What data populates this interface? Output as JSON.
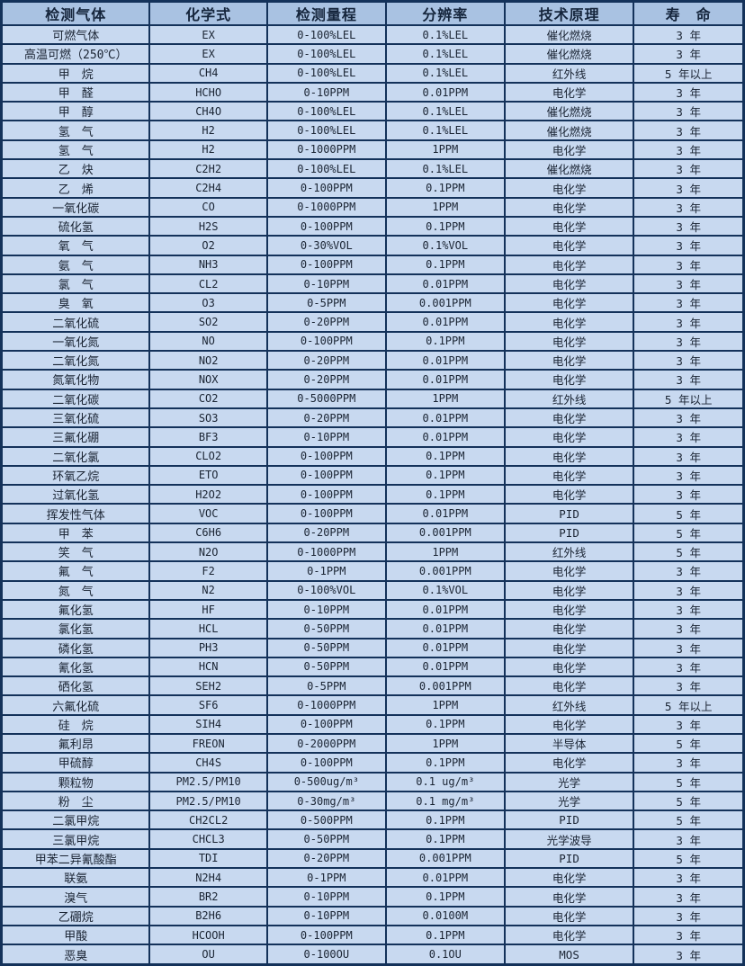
{
  "colors": {
    "header_bg": "#a9c2e2",
    "row_bg": "#c8d9f0",
    "border": "#14325a",
    "text": "#1a2433"
  },
  "table": {
    "columns": [
      "检测气体",
      "化学式",
      "检测量程",
      "分辨率",
      "技术原理",
      "寿　命"
    ],
    "rows": [
      [
        "可燃气体",
        "EX",
        "0-100%LEL",
        "0.1%LEL",
        "催化燃烧",
        "3 年"
      ],
      [
        "高温可燃（250℃）",
        "EX",
        "0-100%LEL",
        "0.1%LEL",
        "催化燃烧",
        "3 年"
      ],
      [
        "甲　烷",
        "CH4",
        "0-100%LEL",
        "0.1%LEL",
        "红外线",
        "5 年以上"
      ],
      [
        "甲　醛",
        "HCHO",
        "0-10PPM",
        "0.01PPM",
        "电化学",
        "3 年"
      ],
      [
        "甲　醇",
        "CH4O",
        "0-100%LEL",
        "0.1%LEL",
        "催化燃烧",
        "3 年"
      ],
      [
        "氢　气",
        "H2",
        "0-100%LEL",
        "0.1%LEL",
        "催化燃烧",
        "3 年"
      ],
      [
        "氢　气",
        "H2",
        "0-1000PPM",
        "1PPM",
        "电化学",
        "3 年"
      ],
      [
        "乙　炔",
        "C2H2",
        "0-100%LEL",
        "0.1%LEL",
        "催化燃烧",
        "3 年"
      ],
      [
        "乙　烯",
        "C2H4",
        "0-100PPM",
        "0.1PPM",
        "电化学",
        "3 年"
      ],
      [
        "一氧化碳",
        "CO",
        "0-1000PPM",
        "1PPM",
        "电化学",
        "3 年"
      ],
      [
        "硫化氢",
        "H2S",
        "0-100PPM",
        "0.1PPM",
        "电化学",
        "3 年"
      ],
      [
        "氧　气",
        "O2",
        "0-30%VOL",
        "0.1%VOL",
        "电化学",
        "3 年"
      ],
      [
        "氨　气",
        "NH3",
        "0-100PPM",
        "0.1PPM",
        "电化学",
        "3 年"
      ],
      [
        "氯　气",
        "CL2",
        "0-10PPM",
        "0.01PPM",
        "电化学",
        "3 年"
      ],
      [
        "臭　氧",
        "O3",
        "0-5PPM",
        "0.001PPM",
        "电化学",
        "3 年"
      ],
      [
        "二氧化硫",
        "SO2",
        "0-20PPM",
        "0.01PPM",
        "电化学",
        "3 年"
      ],
      [
        "一氧化氮",
        "NO",
        "0-100PPM",
        "0.1PPM",
        "电化学",
        "3 年"
      ],
      [
        "二氧化氮",
        "NO2",
        "0-20PPM",
        "0.01PPM",
        "电化学",
        "3 年"
      ],
      [
        "氮氧化物",
        "NOX",
        "0-20PPM",
        "0.01PPM",
        "电化学",
        "3 年"
      ],
      [
        "二氧化碳",
        "CO2",
        "0-5000PPM",
        "1PPM",
        "红外线",
        "5 年以上"
      ],
      [
        "三氧化硫",
        "SO3",
        "0-20PPM",
        "0.01PPM",
        "电化学",
        "3 年"
      ],
      [
        "三氟化硼",
        "BF3",
        "0-10PPM",
        "0.01PPM",
        "电化学",
        "3 年"
      ],
      [
        "二氧化氯",
        "CLO2",
        "0-100PPM",
        "0.1PPM",
        "电化学",
        "3 年"
      ],
      [
        "环氧乙烷",
        "ETO",
        "0-100PPM",
        "0.1PPM",
        "电化学",
        "3 年"
      ],
      [
        "过氧化氢",
        "H2O2",
        "0-100PPM",
        "0.1PPM",
        "电化学",
        "3 年"
      ],
      [
        "挥发性气体",
        "VOC",
        "0-100PPM",
        "0.01PPM",
        "PID",
        "5 年"
      ],
      [
        "甲　苯",
        "C6H6",
        "0-20PPM",
        "0.001PPM",
        "PID",
        "5 年"
      ],
      [
        "笑　气",
        "N2O",
        "0-1000PPM",
        "1PPM",
        "红外线",
        "5 年"
      ],
      [
        "氟　气",
        "F2",
        "0-1PPM",
        "0.001PPM",
        "电化学",
        "3 年"
      ],
      [
        "氮　气",
        "N2",
        "0-100%VOL",
        "0.1%VOL",
        "电化学",
        "3 年"
      ],
      [
        "氟化氢",
        "HF",
        "0-10PPM",
        "0.01PPM",
        "电化学",
        "3 年"
      ],
      [
        "氯化氢",
        "HCL",
        "0-50PPM",
        "0.01PPM",
        "电化学",
        "3 年"
      ],
      [
        "磷化氢",
        "PH3",
        "0-50PPM",
        "0.01PPM",
        "电化学",
        "3 年"
      ],
      [
        "氰化氢",
        "HCN",
        "0-50PPM",
        "0.01PPM",
        "电化学",
        "3 年"
      ],
      [
        "硒化氢",
        "SEH2",
        "0-5PPM",
        "0.001PPM",
        "电化学",
        "3 年"
      ],
      [
        "六氟化硫",
        "SF6",
        "0-1000PPM",
        "1PPM",
        "红外线",
        "5 年以上"
      ],
      [
        "硅　烷",
        "SIH4",
        "0-100PPM",
        "0.1PPM",
        "电化学",
        "3 年"
      ],
      [
        "氟利昂",
        "FREON",
        "0-2000PPM",
        "1PPM",
        "半导体",
        "5 年"
      ],
      [
        "甲硫醇",
        "CH4S",
        "0-100PPM",
        "0.1PPM",
        "电化学",
        "3 年"
      ],
      [
        "颗粒物",
        "PM2.5/PM10",
        "0-500ug/m³",
        "0.1 ug/m³",
        "光学",
        "5 年"
      ],
      [
        "粉　尘",
        "PM2.5/PM10",
        "0-30mg/m³",
        "0.1 mg/m³",
        "光学",
        "5 年"
      ],
      [
        "二氯甲烷",
        "CH2CL2",
        "0-500PPM",
        "0.1PPM",
        "PID",
        "5 年"
      ],
      [
        "三氯甲烷",
        "CHCL3",
        "0-50PPM",
        "0.1PPM",
        "光学波导",
        "3 年"
      ],
      [
        "甲苯二异氰酸酯",
        "TDI",
        "0-20PPM",
        "0.001PPM",
        "PID",
        "5 年"
      ],
      [
        "联氨",
        "N2H4",
        "0-1PPM",
        "0.01PPM",
        "电化学",
        "3 年"
      ],
      [
        "溴气",
        "BR2",
        "0-10PPM",
        "0.1PPM",
        "电化学",
        "3 年"
      ],
      [
        "乙硼烷",
        "B2H6",
        "0-10PPM",
        "0.0100M",
        "电化学",
        "3 年"
      ],
      [
        "甲酸",
        "HCOOH",
        "0-100PPM",
        "0.1PPM",
        "电化学",
        "3 年"
      ],
      [
        "恶臭",
        "OU",
        "0-100OU",
        "0.1OU",
        "MOS",
        "3 年"
      ]
    ]
  }
}
